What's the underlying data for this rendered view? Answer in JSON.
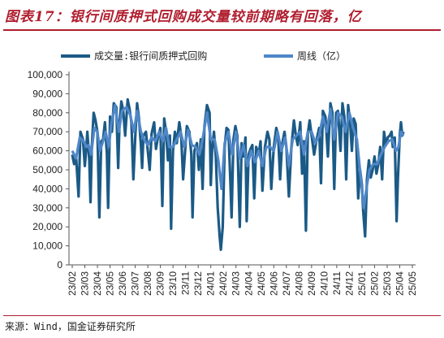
{
  "title": "图表17：银行间质押式回购成交量较前期略有回落，亿",
  "source": "来源：Wind，国金证券研究所",
  "colors": {
    "series1": "#1b5a86",
    "series2": "#4f87c8",
    "accent": "#b01e2f"
  },
  "chart_data": {
    "type": "line",
    "series": [
      {
        "name": "成交量:银行间质押式回购"
      },
      {
        "name": "周线（亿）"
      }
    ],
    "yticks": [
      "0",
      "10,000",
      "20,000",
      "30,000",
      "40,000",
      "50,000",
      "60,000",
      "70,000",
      "80,000",
      "90,000",
      "100,000"
    ],
    "ylim": [
      0,
      100000
    ],
    "xticks": [
      "23/02",
      "23/03",
      "23/04",
      "23/05",
      "23/06",
      "23/07",
      "23/08",
      "23/09",
      "23/10",
      "23/11",
      "23/12",
      "24/01",
      "24/02",
      "24/03",
      "24/04",
      "24/05",
      "24/06",
      "24/07",
      "24/08",
      "24/09",
      "24/10",
      "24/11",
      "24/12",
      "25/01",
      "25/02",
      "25/03",
      "25/04",
      "25/05"
    ],
    "daily_anchors": [
      [
        0,
        58000
      ],
      [
        0.15,
        53000
      ],
      [
        0.3,
        57000
      ],
      [
        0.5,
        36000
      ],
      [
        0.65,
        70000
      ],
      [
        0.85,
        66000
      ],
      [
        1.0,
        52000
      ],
      [
        1.1,
        60000
      ],
      [
        1.2,
        70000
      ],
      [
        1.35,
        55000
      ],
      [
        1.45,
        33000
      ],
      [
        1.55,
        62000
      ],
      [
        1.7,
        80000
      ],
      [
        1.85,
        76000
      ],
      [
        2.0,
        70000
      ],
      [
        2.15,
        25000
      ],
      [
        2.3,
        65000
      ],
      [
        2.45,
        66000
      ],
      [
        2.6,
        75000
      ],
      [
        2.75,
        58000
      ],
      [
        2.85,
        30000
      ],
      [
        3.0,
        78000
      ],
      [
        3.15,
        70000
      ],
      [
        3.3,
        85000
      ],
      [
        3.5,
        83000
      ],
      [
        3.65,
        51000
      ],
      [
        3.75,
        74000
      ],
      [
        3.9,
        86000
      ],
      [
        4.05,
        81000
      ],
      [
        4.2,
        68000
      ],
      [
        4.4,
        87000
      ],
      [
        4.55,
        82000
      ],
      [
        4.7,
        75000
      ],
      [
        4.85,
        45000
      ],
      [
        5.0,
        67000
      ],
      [
        5.15,
        85000
      ],
      [
        5.3,
        77000
      ],
      [
        5.45,
        63000
      ],
      [
        5.55,
        51000
      ],
      [
        5.65,
        68000
      ],
      [
        5.85,
        70000
      ],
      [
        6.0,
        60000
      ],
      [
        6.15,
        50000
      ],
      [
        6.3,
        69000
      ],
      [
        6.5,
        75000
      ],
      [
        6.65,
        61000
      ],
      [
        6.8,
        67000
      ],
      [
        7.0,
        72000
      ],
      [
        7.15,
        31000
      ],
      [
        7.3,
        77000
      ],
      [
        7.45,
        70000
      ],
      [
        7.6,
        55000
      ],
      [
        7.75,
        68000
      ],
      [
        7.85,
        19000
      ],
      [
        8.0,
        60000
      ],
      [
        8.15,
        70000
      ],
      [
        8.3,
        64000
      ],
      [
        8.5,
        75000
      ],
      [
        8.65,
        68000
      ],
      [
        8.8,
        45000
      ],
      [
        8.95,
        59000
      ],
      [
        9.1,
        73000
      ],
      [
        9.3,
        70000
      ],
      [
        9.45,
        58000
      ],
      [
        9.55,
        25000
      ],
      [
        9.7,
        60000
      ],
      [
        9.9,
        64000
      ],
      [
        10.05,
        50000
      ],
      [
        10.2,
        66000
      ],
      [
        10.35,
        40000
      ],
      [
        10.5,
        73000
      ],
      [
        10.7,
        84000
      ],
      [
        10.9,
        80000
      ],
      [
        11.0,
        42000
      ],
      [
        11.1,
        60000
      ],
      [
        11.25,
        70000
      ],
      [
        11.4,
        57000
      ],
      [
        11.55,
        30000
      ],
      [
        11.7,
        15000
      ],
      [
        11.8,
        8000
      ],
      [
        11.95,
        20000
      ],
      [
        12.1,
        62000
      ],
      [
        12.25,
        72000
      ],
      [
        12.4,
        71000
      ],
      [
        12.55,
        44000
      ],
      [
        12.65,
        25000
      ],
      [
        12.8,
        66000
      ],
      [
        12.95,
        73000
      ],
      [
        13.1,
        68000
      ],
      [
        13.3,
        20000
      ],
      [
        13.45,
        64000
      ],
      [
        13.6,
        57000
      ],
      [
        13.75,
        67000
      ],
      [
        13.85,
        23000
      ],
      [
        14.0,
        58000
      ],
      [
        14.15,
        61000
      ],
      [
        14.3,
        63000
      ],
      [
        14.45,
        35000
      ],
      [
        14.6,
        62000
      ],
      [
        14.8,
        58000
      ],
      [
        14.95,
        65000
      ],
      [
        15.1,
        39000
      ],
      [
        15.3,
        62000
      ],
      [
        15.5,
        70000
      ],
      [
        15.65,
        66000
      ],
      [
        15.8,
        40000
      ],
      [
        16.0,
        62000
      ],
      [
        16.2,
        72000
      ],
      [
        16.35,
        68000
      ],
      [
        16.5,
        45000
      ],
      [
        16.65,
        63000
      ],
      [
        16.85,
        70000
      ],
      [
        17.0,
        62000
      ],
      [
        17.2,
        36000
      ],
      [
        17.4,
        62000
      ],
      [
        17.6,
        76000
      ],
      [
        17.75,
        68000
      ],
      [
        17.9,
        63000
      ],
      [
        18.1,
        75000
      ],
      [
        18.25,
        48000
      ],
      [
        18.4,
        65000
      ],
      [
        18.55,
        18000
      ],
      [
        18.7,
        69000
      ],
      [
        18.85,
        76000
      ],
      [
        19.0,
        68000
      ],
      [
        19.2,
        58000
      ],
      [
        19.4,
        66000
      ],
      [
        19.6,
        72000
      ],
      [
        19.75,
        43000
      ],
      [
        19.9,
        81000
      ],
      [
        20.1,
        78000
      ],
      [
        20.3,
        57000
      ],
      [
        20.5,
        85000
      ],
      [
        20.65,
        80000
      ],
      [
        20.8,
        40000
      ],
      [
        20.95,
        80000
      ],
      [
        21.1,
        81000
      ],
      [
        21.3,
        60000
      ],
      [
        21.45,
        85000
      ],
      [
        21.6,
        78000
      ],
      [
        21.75,
        45000
      ],
      [
        21.9,
        84000
      ],
      [
        22.05,
        76000
      ],
      [
        22.2,
        60000
      ],
      [
        22.35,
        77000
      ],
      [
        22.5,
        74000
      ],
      [
        22.7,
        35000
      ],
      [
        22.85,
        50000
      ],
      [
        23.0,
        42000
      ],
      [
        23.1,
        28000
      ],
      [
        23.25,
        15000
      ],
      [
        23.4,
        45000
      ],
      [
        23.55,
        55000
      ],
      [
        23.7,
        46000
      ],
      [
        23.85,
        50000
      ],
      [
        24.0,
        57000
      ],
      [
        24.15,
        48000
      ],
      [
        24.3,
        53000
      ],
      [
        24.45,
        62000
      ],
      [
        24.6,
        45000
      ],
      [
        24.75,
        70000
      ],
      [
        24.9,
        63000
      ],
      [
        25.05,
        67000
      ],
      [
        25.2,
        68000
      ],
      [
        25.35,
        70000
      ],
      [
        25.45,
        62000
      ],
      [
        25.6,
        67000
      ],
      [
        25.75,
        23000
      ],
      [
        25.85,
        45000
      ],
      [
        26.0,
        68000
      ],
      [
        26.1,
        75000
      ],
      [
        26.2,
        68000
      ],
      [
        26.3,
        70000
      ]
    ],
    "weekly_anchors": [
      [
        0,
        60000
      ],
      [
        0.3,
        56000
      ],
      [
        0.6,
        67000
      ],
      [
        0.9,
        65000
      ],
      [
        1.15,
        62000
      ],
      [
        1.3,
        63000
      ],
      [
        1.5,
        58000
      ],
      [
        1.75,
        72000
      ],
      [
        2.0,
        70000
      ],
      [
        2.2,
        60000
      ],
      [
        2.4,
        64000
      ],
      [
        2.65,
        70000
      ],
      [
        2.9,
        62000
      ],
      [
        3.1,
        74000
      ],
      [
        3.4,
        84000
      ],
      [
        3.7,
        70000
      ],
      [
        3.95,
        81000
      ],
      [
        4.3,
        83000
      ],
      [
        4.6,
        79000
      ],
      [
        4.9,
        70000
      ],
      [
        5.15,
        81000
      ],
      [
        5.45,
        70000
      ],
      [
        5.7,
        66000
      ],
      [
        6.0,
        63000
      ],
      [
        6.3,
        67000
      ],
      [
        6.6,
        65000
      ],
      [
        6.9,
        70000
      ],
      [
        7.2,
        65000
      ],
      [
        7.45,
        72000
      ],
      [
        7.7,
        62000
      ],
      [
        8.0,
        62000
      ],
      [
        8.3,
        66000
      ],
      [
        8.6,
        70000
      ],
      [
        8.9,
        62000
      ],
      [
        9.2,
        71000
      ],
      [
        9.5,
        63000
      ],
      [
        9.8,
        62000
      ],
      [
        10.1,
        58000
      ],
      [
        10.4,
        68000
      ],
      [
        10.7,
        80000
      ],
      [
        11.0,
        66000
      ],
      [
        11.3,
        66000
      ],
      [
        11.6,
        55000
      ],
      [
        11.85,
        40000
      ],
      [
        12.1,
        64000
      ],
      [
        12.4,
        70000
      ],
      [
        12.7,
        58000
      ],
      [
        13.0,
        70000
      ],
      [
        13.3,
        56000
      ],
      [
        13.6,
        63000
      ],
      [
        13.9,
        52000
      ],
      [
        14.2,
        60000
      ],
      [
        14.5,
        54000
      ],
      [
        14.8,
        60000
      ],
      [
        15.1,
        52000
      ],
      [
        15.4,
        62000
      ],
      [
        15.7,
        62000
      ],
      [
        16.0,
        60000
      ],
      [
        16.3,
        70000
      ],
      [
        16.6,
        60000
      ],
      [
        16.9,
        67000
      ],
      [
        17.2,
        52000
      ],
      [
        17.5,
        66000
      ],
      [
        17.8,
        68000
      ],
      [
        18.1,
        70000
      ],
      [
        18.4,
        58000
      ],
      [
        18.7,
        70000
      ],
      [
        19.0,
        70000
      ],
      [
        19.3,
        64000
      ],
      [
        19.6,
        68000
      ],
      [
        19.9,
        78000
      ],
      [
        20.2,
        70000
      ],
      [
        20.5,
        82000
      ],
      [
        20.8,
        66000
      ],
      [
        21.1,
        80000
      ],
      [
        21.4,
        78000
      ],
      [
        21.7,
        70000
      ],
      [
        22.0,
        80000
      ],
      [
        22.3,
        72000
      ],
      [
        22.6,
        66000
      ],
      [
        22.9,
        46000
      ],
      [
        23.15,
        30000
      ],
      [
        23.4,
        42000
      ],
      [
        23.6,
        50000
      ],
      [
        23.9,
        53000
      ],
      [
        24.2,
        53000
      ],
      [
        24.5,
        58000
      ],
      [
        24.8,
        62000
      ],
      [
        25.1,
        65000
      ],
      [
        25.4,
        66000
      ],
      [
        25.7,
        60000
      ],
      [
        25.9,
        62000
      ],
      [
        26.1,
        70000
      ],
      [
        26.3,
        68000
      ]
    ]
  }
}
